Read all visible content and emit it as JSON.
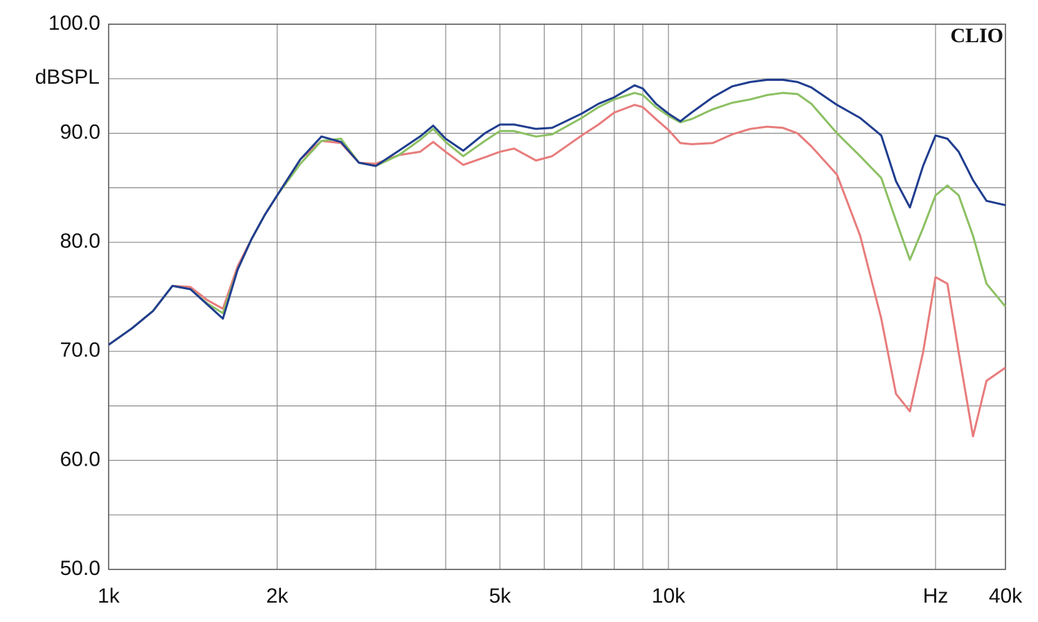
{
  "chart_data": {
    "type": "line",
    "brand": "CLIO",
    "y_label": "dBSPL",
    "log_x": true,
    "grid": true,
    "xlim": [
      1000,
      40000
    ],
    "xticks": [
      {
        "value": 1000,
        "label": "1k"
      },
      {
        "value": 2000,
        "label": "2k"
      },
      {
        "value": 5000,
        "label": "5k"
      },
      {
        "value": 10000,
        "label": "10k"
      },
      {
        "value": 30000,
        "label": "Hz"
      },
      {
        "value": 40000,
        "label": "40k"
      }
    ],
    "xminor": [
      3000,
      4000,
      6000,
      7000,
      8000,
      9000,
      20000
    ],
    "ylim": [
      50,
      100
    ],
    "yticks": [
      {
        "value": 100,
        "label": "100.0"
      },
      {
        "value": 90,
        "label": "90.0"
      },
      {
        "value": 80,
        "label": "80.0"
      },
      {
        "value": 70,
        "label": "70.0"
      },
      {
        "value": 60,
        "label": "60.0"
      },
      {
        "value": 50,
        "label": "50.0"
      }
    ],
    "yminor": [
      95,
      85,
      75,
      65,
      55
    ],
    "x": [
      1000,
      1100,
      1200,
      1300,
      1400,
      1500,
      1600,
      1700,
      1800,
      1900,
      2000,
      2200,
      2400,
      2600,
      2800,
      3000,
      3300,
      3600,
      3800,
      4000,
      4300,
      4700,
      5000,
      5300,
      5800,
      6200,
      7000,
      7500,
      8000,
      8700,
      9000,
      9500,
      10000,
      10500,
      11000,
      12000,
      13000,
      14000,
      15000,
      16000,
      17000,
      18000,
      20000,
      22000,
      24000,
      25500,
      27000,
      28500,
      30000,
      31500,
      33000,
      35000,
      37000,
      40000
    ],
    "series": [
      {
        "color": "#e87c7c",
        "values": [
          70.6,
          72.1,
          73.7,
          76.0,
          75.9,
          74.7,
          73.9,
          77.8,
          80.3,
          82.5,
          84.3,
          87.6,
          89.3,
          89.1,
          87.3,
          87.2,
          88.0,
          88.3,
          89.2,
          88.3,
          87.1,
          87.8,
          88.3,
          88.6,
          87.5,
          87.9,
          89.8,
          90.8,
          91.9,
          92.6,
          92.4,
          91.3,
          90.3,
          89.1,
          89.0,
          89.1,
          89.9,
          90.4,
          90.6,
          90.5,
          90.0,
          88.8,
          86.2,
          80.6,
          73.0,
          66.1,
          64.5,
          69.9,
          76.8,
          76.2,
          69.9,
          62.2,
          67.3,
          68.5
        ]
      },
      {
        "color": "#8cc063",
        "values": [
          70.6,
          72.1,
          73.7,
          76.0,
          75.7,
          74.4,
          73.5,
          77.5,
          80.3,
          82.5,
          84.3,
          87.2,
          89.3,
          89.5,
          87.3,
          87.0,
          88.0,
          89.4,
          90.4,
          89.2,
          87.9,
          89.3,
          90.2,
          90.2,
          89.7,
          89.9,
          91.4,
          92.4,
          93.1,
          93.7,
          93.5,
          92.4,
          91.6,
          91.0,
          91.3,
          92.2,
          92.8,
          93.1,
          93.5,
          93.7,
          93.6,
          92.7,
          90.0,
          87.9,
          85.9,
          82.0,
          78.4,
          81.3,
          84.3,
          85.2,
          84.3,
          80.6,
          76.2,
          74.1
        ]
      },
      {
        "color": "#1f3d8f",
        "values": [
          70.6,
          72.1,
          73.7,
          76.0,
          75.7,
          74.3,
          73.0,
          77.5,
          80.3,
          82.5,
          84.3,
          87.6,
          89.7,
          89.2,
          87.3,
          87.0,
          88.4,
          89.7,
          90.7,
          89.5,
          88.4,
          90.0,
          90.8,
          90.8,
          90.4,
          90.5,
          91.8,
          92.7,
          93.3,
          94.4,
          94.1,
          92.7,
          91.8,
          91.1,
          91.9,
          93.3,
          94.3,
          94.7,
          94.9,
          94.9,
          94.7,
          94.2,
          92.6,
          91.4,
          89.8,
          85.6,
          83.2,
          87.0,
          89.8,
          89.5,
          88.3,
          85.7,
          83.8,
          83.4
        ]
      }
    ]
  }
}
